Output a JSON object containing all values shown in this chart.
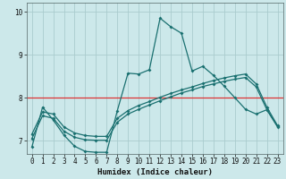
{
  "xlabel": "Humidex (Indice chaleur)",
  "bg_color": "#cce8ea",
  "grid_color": "#aaccce",
  "line_color": "#1a7070",
  "red_line_color": "#dd3333",
  "xlim": [
    -0.5,
    23.5
  ],
  "ylim": [
    6.7,
    10.2
  ],
  "x_ticks": [
    0,
    1,
    2,
    3,
    4,
    5,
    6,
    7,
    8,
    9,
    10,
    11,
    12,
    13,
    14,
    15,
    16,
    17,
    18,
    19,
    20,
    21,
    22,
    23
  ],
  "y_ticks": [
    7,
    8,
    9,
    10
  ],
  "curve1_x": [
    0,
    1,
    2,
    3,
    4,
    5,
    6,
    7,
    8,
    9,
    10,
    11,
    12,
    13,
    14,
    15,
    16,
    17,
    18,
    19,
    20,
    21,
    22,
    23
  ],
  "curve1_y": [
    6.85,
    7.78,
    7.48,
    7.13,
    6.87,
    6.75,
    6.73,
    6.73,
    7.7,
    8.57,
    8.55,
    8.65,
    9.85,
    9.65,
    9.5,
    8.62,
    8.73,
    8.52,
    8.27,
    8.0,
    7.73,
    7.62,
    7.72,
    7.33
  ],
  "curve2_x": [
    0,
    1,
    2,
    3,
    4,
    5,
    6,
    7,
    8,
    9,
    10,
    11,
    12,
    13,
    14,
    15,
    16,
    17,
    18,
    19,
    20,
    21,
    22,
    23
  ],
  "curve2_y": [
    7.05,
    7.58,
    7.52,
    7.22,
    7.08,
    7.02,
    7.01,
    7.01,
    7.43,
    7.62,
    7.73,
    7.83,
    7.93,
    8.02,
    8.11,
    8.18,
    8.26,
    8.32,
    8.38,
    8.43,
    8.47,
    8.25,
    7.72,
    7.32
  ],
  "curve3_x": [
    0,
    1,
    2,
    3,
    4,
    5,
    6,
    7,
    8,
    9,
    10,
    11,
    12,
    13,
    14,
    15,
    16,
    17,
    18,
    19,
    20,
    21,
    22,
    23
  ],
  "curve3_y": [
    7.15,
    7.67,
    7.62,
    7.32,
    7.18,
    7.12,
    7.1,
    7.1,
    7.52,
    7.7,
    7.82,
    7.91,
    8.01,
    8.1,
    8.18,
    8.25,
    8.33,
    8.4,
    8.46,
    8.51,
    8.55,
    8.32,
    7.78,
    7.35
  ],
  "red_line_y": 8.0,
  "tick_fontsize": 5.5,
  "xlabel_fontsize": 6.5
}
